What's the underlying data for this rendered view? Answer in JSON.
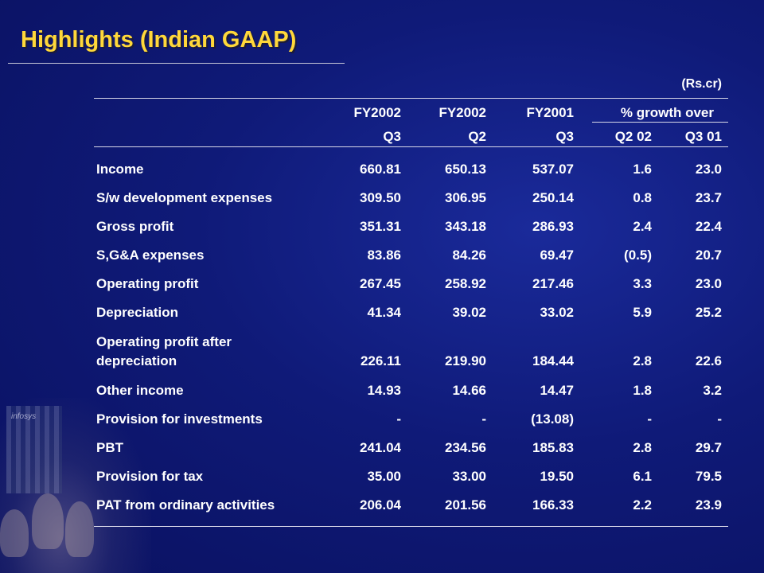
{
  "title": "Highlights (Indian GAAP)",
  "unit": "(Rs.cr)",
  "logo_text": "infosys",
  "header": {
    "row1": [
      "FY2002",
      "FY2002",
      "FY2001",
      "% growth over"
    ],
    "row2": [
      "Q3",
      "Q2",
      "Q3",
      "Q2 02",
      "Q3 01"
    ]
  },
  "rows": [
    {
      "label": "Income",
      "values": [
        "660.81",
        "650.13",
        "537.07",
        "1.6",
        "23.0"
      ]
    },
    {
      "label": "S/w development expenses",
      "values": [
        "309.50",
        "306.95",
        "250.14",
        "0.8",
        "23.7"
      ]
    },
    {
      "label": "Gross profit",
      "values": [
        "351.31",
        "343.18",
        "286.93",
        "2.4",
        "22.4"
      ]
    },
    {
      "label": "S,G&A expenses",
      "values": [
        "83.86",
        "84.26",
        "69.47",
        "(0.5)",
        "20.7"
      ]
    },
    {
      "label": "Operating profit",
      "values": [
        "267.45",
        "258.92",
        "217.46",
        "3.3",
        "23.0"
      ]
    },
    {
      "label": "Depreciation",
      "values": [
        "41.34",
        "39.02",
        "33.02",
        "5.9",
        "25.2"
      ]
    },
    {
      "label": "Operating profit after",
      "label2": "depreciation",
      "values": [
        "226.11",
        "219.90",
        "184.44",
        "2.8",
        "22.6"
      ]
    },
    {
      "label": "Other income",
      "values": [
        "14.93",
        "14.66",
        "14.47",
        "1.8",
        "3.2"
      ]
    },
    {
      "label": "Provision for investments",
      "values": [
        "-",
        "-",
        "(13.08)",
        "-",
        "-"
      ]
    },
    {
      "label": "PBT",
      "values": [
        "241.04",
        "234.56",
        "185.83",
        "2.8",
        "29.7"
      ]
    },
    {
      "label": "Provision for tax",
      "values": [
        "35.00",
        "33.00",
        "19.50",
        "6.1",
        "79.5"
      ]
    },
    {
      "label": "PAT from ordinary activities",
      "values": [
        "206.04",
        "201.56",
        "166.33",
        "2.2",
        "23.9"
      ]
    }
  ]
}
